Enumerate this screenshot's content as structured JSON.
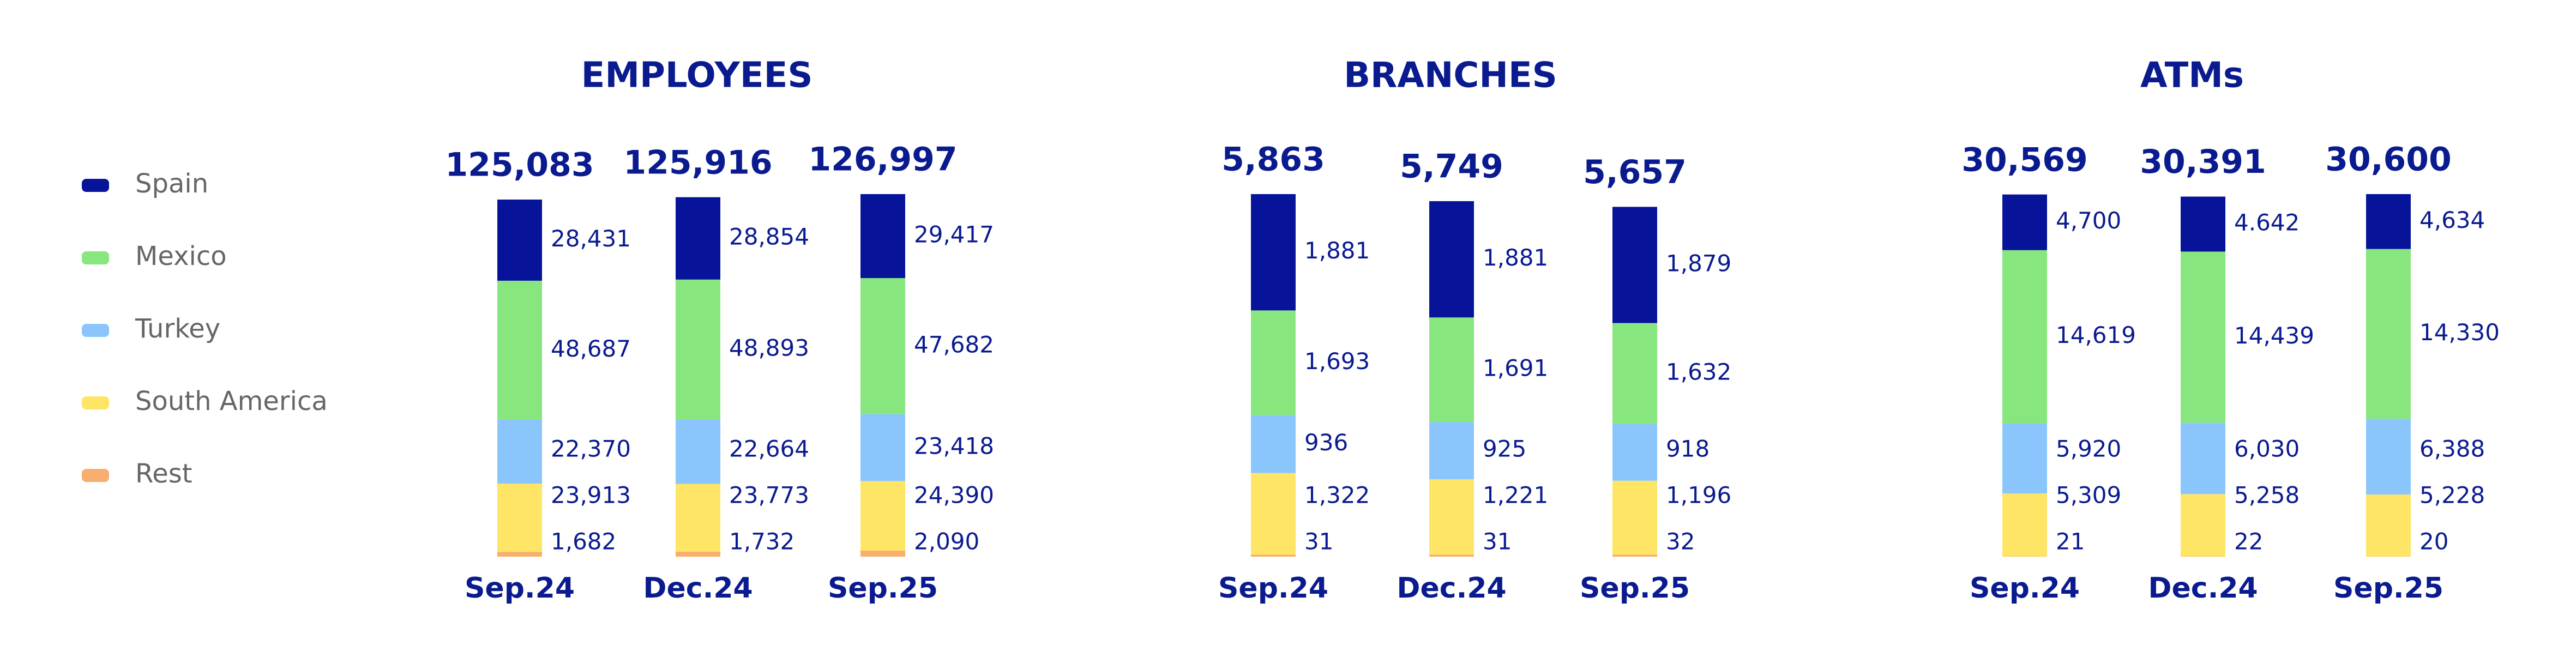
{
  "chart_data": [
    {
      "type": "bar",
      "stacked": true,
      "title": "EMPLOYEES",
      "categories": [
        "Sep.24",
        "Dec.24",
        "Sep.25"
      ],
      "totals": [
        125083,
        125916,
        126997
      ],
      "total_labels": [
        "125,083",
        "125,916",
        "126,997"
      ],
      "series": [
        {
          "name": "Spain",
          "color": "#07149a",
          "values": [
            28431,
            28854,
            29417
          ],
          "value_labels": [
            "28,431",
            "28,854",
            "29,417"
          ]
        },
        {
          "name": "Mexico",
          "color": "#88e67e",
          "values": [
            48687,
            48893,
            47682
          ],
          "value_labels": [
            "48,687",
            "48,893",
            "47,682"
          ]
        },
        {
          "name": "Turkey",
          "color": "#8ac6fb",
          "values": [
            22370,
            22664,
            23418
          ],
          "value_labels": [
            "22,370",
            "22,664",
            "23,418"
          ]
        },
        {
          "name": "South America",
          "color": "#fee566",
          "values": [
            23913,
            23773,
            24390
          ],
          "value_labels": [
            "23,913",
            "23,773",
            "24,390"
          ]
        },
        {
          "name": "Rest",
          "color": "#f7ae6e",
          "values": [
            1682,
            1732,
            2090
          ],
          "value_labels": [
            "1,682",
            "1,732",
            "2,090"
          ]
        }
      ]
    },
    {
      "type": "bar",
      "stacked": true,
      "title": "BRANCHES",
      "categories": [
        "Sep.24",
        "Dec.24",
        "Sep.25"
      ],
      "totals": [
        5863,
        5749,
        5657
      ],
      "total_labels": [
        "5,863",
        "5,749",
        "5,657"
      ],
      "series": [
        {
          "name": "Spain",
          "color": "#07149a",
          "values": [
            1881,
            1881,
            1879
          ],
          "value_labels": [
            "1,881",
            "1,881",
            "1,879"
          ]
        },
        {
          "name": "Mexico",
          "color": "#88e67e",
          "values": [
            1693,
            1691,
            1632
          ],
          "value_labels": [
            "1,693",
            "1,691",
            "1,632"
          ]
        },
        {
          "name": "Turkey",
          "color": "#8ac6fb",
          "values": [
            936,
            925,
            918
          ]
        },
        {
          "name": "South America",
          "color": "#fee566",
          "values": [
            1322,
            1221,
            1196
          ],
          "value_labels": [
            "1,322",
            "1,221",
            "1,196"
          ]
        },
        {
          "name": "Rest",
          "color": "#f7ae6e",
          "values": [
            31,
            31,
            32
          ]
        }
      ]
    },
    {
      "type": "bar",
      "stacked": true,
      "title": "ATMs",
      "categories": [
        "Sep.24",
        "Dec.24",
        "Sep.25"
      ],
      "totals": [
        30569,
        30391,
        30600
      ],
      "total_labels": [
        "30,569",
        "30,391",
        "30,600"
      ],
      "series": [
        {
          "name": "Spain",
          "color": "#07149a",
          "values": [
            4700,
            4642,
            4634
          ],
          "value_labels": [
            "4,700",
            "4.642",
            "4,634"
          ]
        },
        {
          "name": "Mexico",
          "color": "#88e67e",
          "values": [
            14619,
            14439,
            14330
          ],
          "value_labels": [
            "14,619",
            "14,439",
            "14,330"
          ]
        },
        {
          "name": "Turkey",
          "color": "#8ac6fb",
          "values": [
            5920,
            6030,
            6388
          ],
          "value_labels": [
            "5,920",
            "6,030",
            "6,388"
          ]
        },
        {
          "name": "South America",
          "color": "#fee566",
          "values": [
            5309,
            5258,
            5228
          ],
          "value_labels": [
            "5,309",
            "5,258",
            "5,228"
          ]
        },
        {
          "name": "Rest",
          "color": "#f7ae6e",
          "values": [
            21,
            22,
            20
          ]
        }
      ]
    }
  ]
}
